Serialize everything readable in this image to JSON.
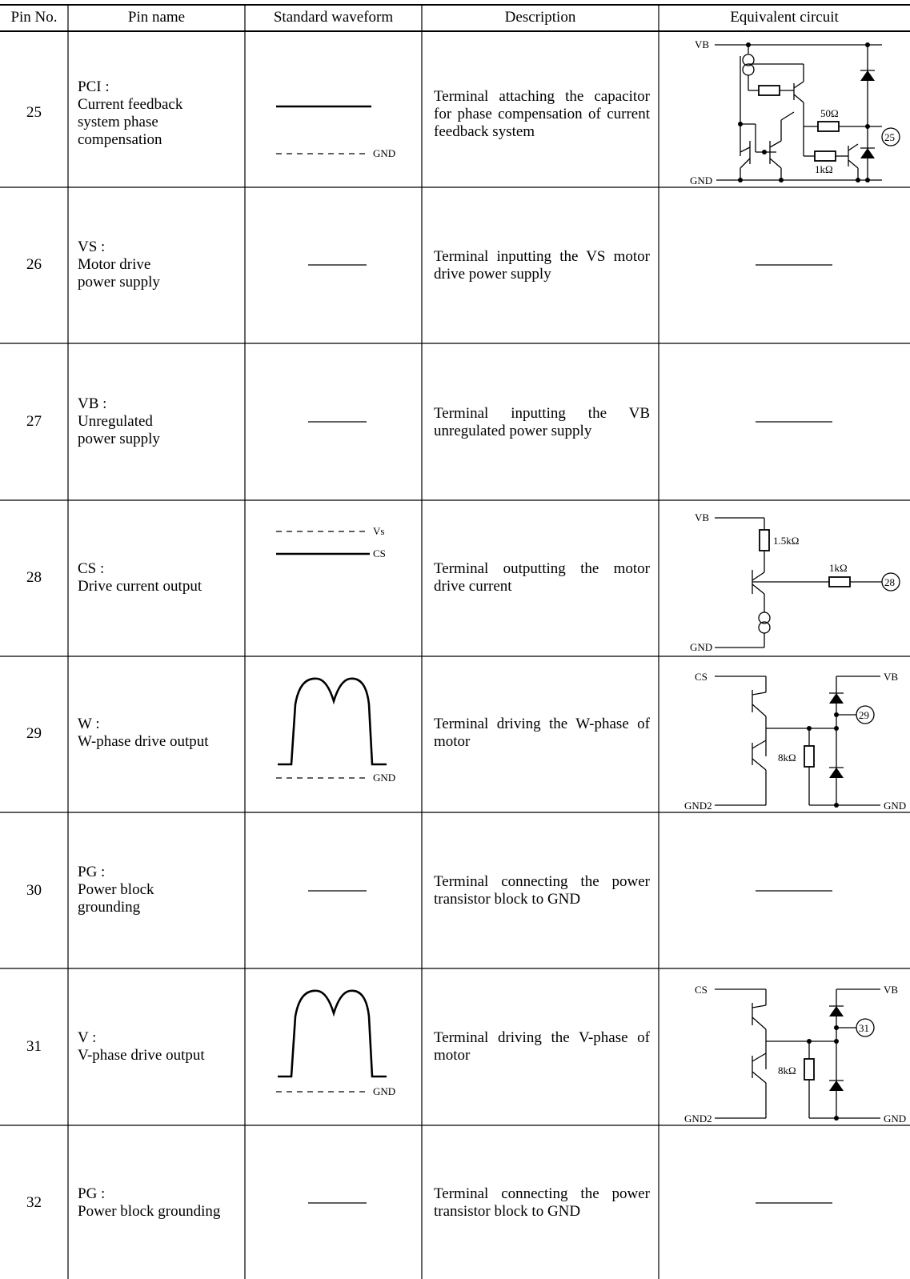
{
  "headers": {
    "pin_no": "Pin No.",
    "pin_name": "Pin name",
    "waveform": "Standard waveform",
    "description": "Description",
    "circuit": "Equivalent circuit"
  },
  "rows": [
    {
      "pin": "25",
      "name": [
        "PCI :",
        "Current feedback",
        "system phase",
        "compensation"
      ],
      "description": "Terminal attaching the capacitor for phase compensation of current feedback system"
    },
    {
      "pin": "26",
      "name": [
        "VS :",
        "Motor drive",
        "power supply"
      ],
      "description": "Terminal inputting the VS motor drive power supply"
    },
    {
      "pin": "27",
      "name": [
        "VB :",
        "Unregulated",
        "power supply"
      ],
      "description": "Terminal inputting the VB unregulated power supply"
    },
    {
      "pin": "28",
      "name": [
        "CS :",
        "Drive current output"
      ],
      "description": "Terminal outputting the motor drive current"
    },
    {
      "pin": "29",
      "name": [
        "W :",
        "W-phase drive output"
      ],
      "description": "Terminal driving the W-phase of motor"
    },
    {
      "pin": "30",
      "name": [
        "PG :",
        "Power block",
        "grounding"
      ],
      "description": "Terminal connecting the power transistor block to GND"
    },
    {
      "pin": "31",
      "name": [
        "V :",
        "V-phase drive output"
      ],
      "description": "Terminal driving the V-phase of motor"
    },
    {
      "pin": "32",
      "name": [
        "PG :",
        "Power block grounding"
      ],
      "description": "Terminal connecting the power transistor block to GND"
    }
  ],
  "labels": {
    "gnd": "GND",
    "vs": "Vs",
    "cs": "CS",
    "vb": "VB",
    "gnd2": "GND2",
    "r50": "50Ω",
    "r1k": "1kΩ",
    "r1k5": "1.5kΩ",
    "r8k": "8kΩ",
    "pin25": "25",
    "pin28": "28",
    "pin29": "29",
    "pin31": "31"
  }
}
